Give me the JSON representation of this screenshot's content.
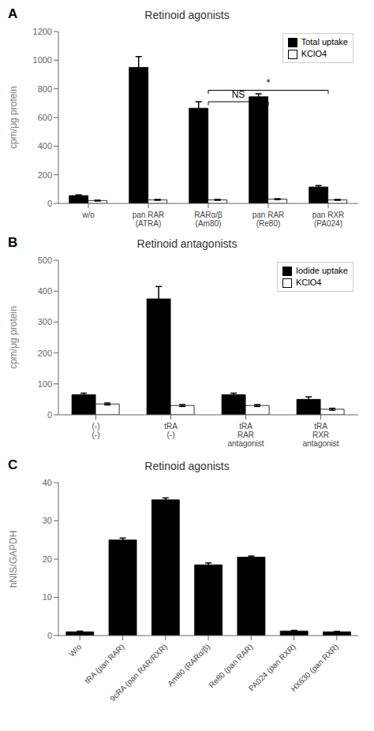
{
  "chart_data": [
    {
      "type": "bar",
      "title": "Retinoid agonists",
      "ylabel": "cpm/μg protein",
      "categories": [
        "w/o",
        "pan RAR\n(ATRA)",
        "RARα/β\n(Am80)",
        "pan RAR\n(Re80)",
        "pan RXR\n(PA024)"
      ],
      "series": [
        {
          "name": "Total uptake",
          "color": "#000000",
          "values": [
            55,
            950,
            665,
            745,
            115
          ],
          "errors": [
            5,
            75,
            45,
            20,
            10
          ]
        },
        {
          "name": "KClO4",
          "color": "#ffffff",
          "values": [
            20,
            25,
            25,
            30,
            25
          ],
          "errors": [
            3,
            3,
            3,
            3,
            3
          ]
        }
      ],
      "ylim": [
        0,
        1200
      ],
      "yticks": [
        0,
        200,
        400,
        600,
        800,
        1000,
        1200
      ],
      "legend": "upper right",
      "annotations": [
        {
          "text": "A"
        },
        {
          "text": "NS",
          "from": "RARα/β\n(Am80)",
          "to": "pan RAR\n(Re80)",
          "y": 710
        },
        {
          "text": "*",
          "from": "RARα/β\n(Am80)",
          "to": "pan RXR\n(PA024)",
          "y": 790
        }
      ]
    },
    {
      "type": "bar",
      "title": "Retinoid antagonists",
      "ylabel": "cpm/μg protein",
      "categories": [
        "(-)\n(-)",
        "tRA\n(-)",
        "tRA\nRAR\nantagonist",
        "tRA\nRXR\nantagonist"
      ],
      "series": [
        {
          "name": "Iodide uptake",
          "color": "#000000",
          "values": [
            65,
            375,
            65,
            50
          ],
          "errors": [
            5,
            40,
            5,
            8
          ]
        },
        {
          "name": "KClO4",
          "color": "#ffffff",
          "values": [
            35,
            30,
            30,
            18
          ],
          "errors": [
            3,
            3,
            3,
            3
          ]
        }
      ],
      "ylim": [
        0,
        500
      ],
      "yticks": [
        0,
        100,
        200,
        300,
        400,
        500
      ],
      "legend": "upper right",
      "annotations": [
        {
          "text": "B"
        }
      ]
    },
    {
      "type": "bar",
      "title": "Retinoid agonists",
      "ylabel": "hNIS/GAPDH",
      "categories": [
        "W/o",
        "tRA (pan RAR)",
        "9cRA (pan RAR/RXR)",
        "Am80 (RARα/β)",
        "Re80 (pan RAR)",
        "PA024 (pan RXR)",
        "HX630 (pan RXR)"
      ],
      "values": [
        1.0,
        25.0,
        35.5,
        18.5,
        20.5,
        1.2,
        1.0
      ],
      "errors": [
        0.15,
        0.5,
        0.5,
        0.5,
        0.3,
        0.15,
        0.1
      ],
      "color": "#000000",
      "ylim": [
        0,
        40
      ],
      "yticks": [
        0,
        10,
        20,
        30,
        40
      ],
      "annotations": [
        {
          "text": "C"
        }
      ]
    }
  ]
}
